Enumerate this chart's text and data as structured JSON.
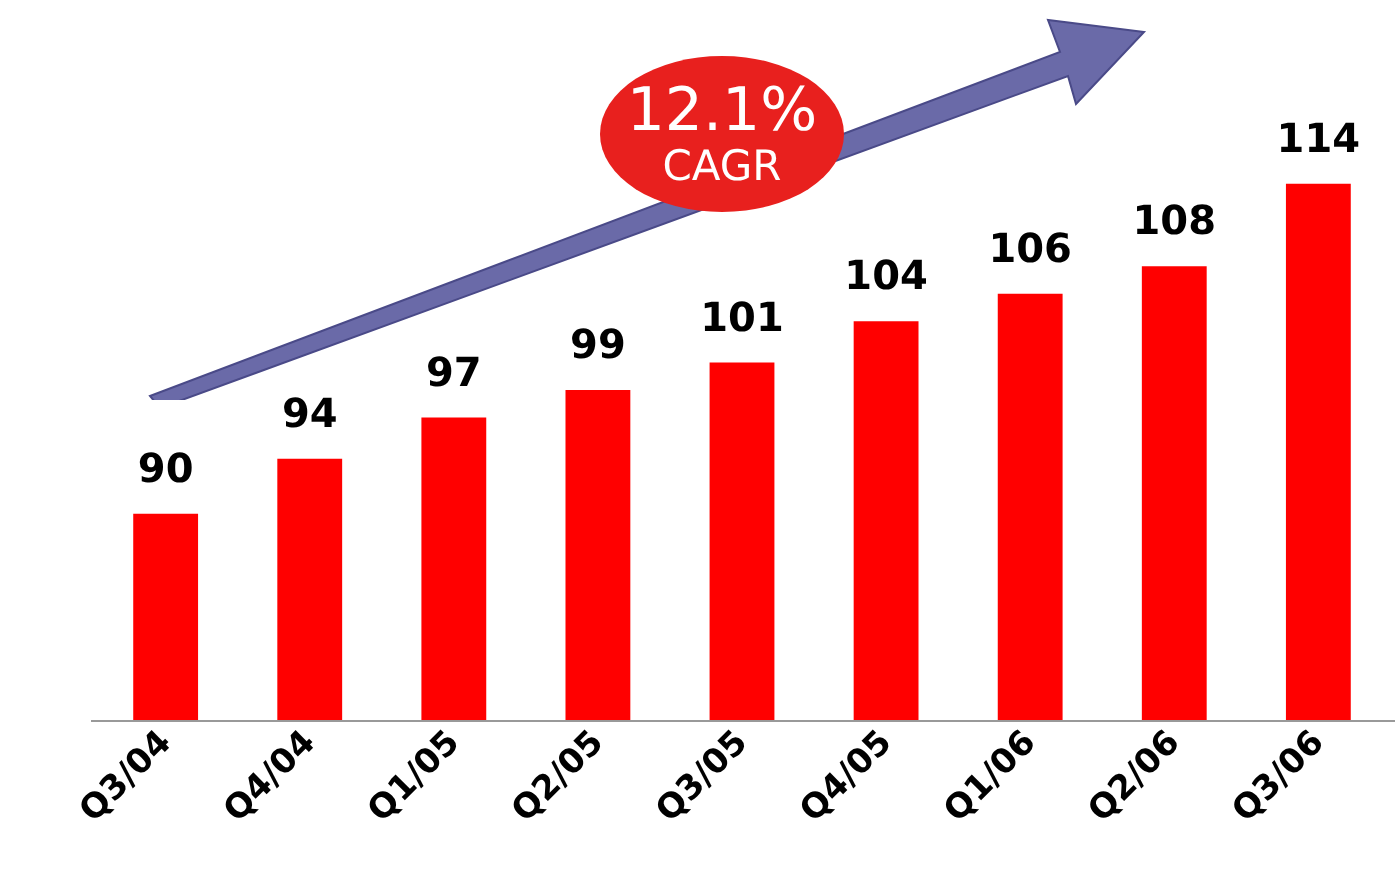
{
  "chart_data": {
    "type": "bar",
    "categories": [
      "Q3/04",
      "Q4/04",
      "Q1/05",
      "Q2/05",
      "Q3/05",
      "Q4/05",
      "Q1/06",
      "Q2/06",
      "Q3/06"
    ],
    "values": [
      90,
      94,
      97,
      99,
      101,
      104,
      106,
      108,
      114
    ],
    "color": "#ff0000",
    "ylim": [
      75,
      123
    ],
    "data_labels": true,
    "annotations": [
      "12.1%",
      "CAGR"
    ]
  }
}
